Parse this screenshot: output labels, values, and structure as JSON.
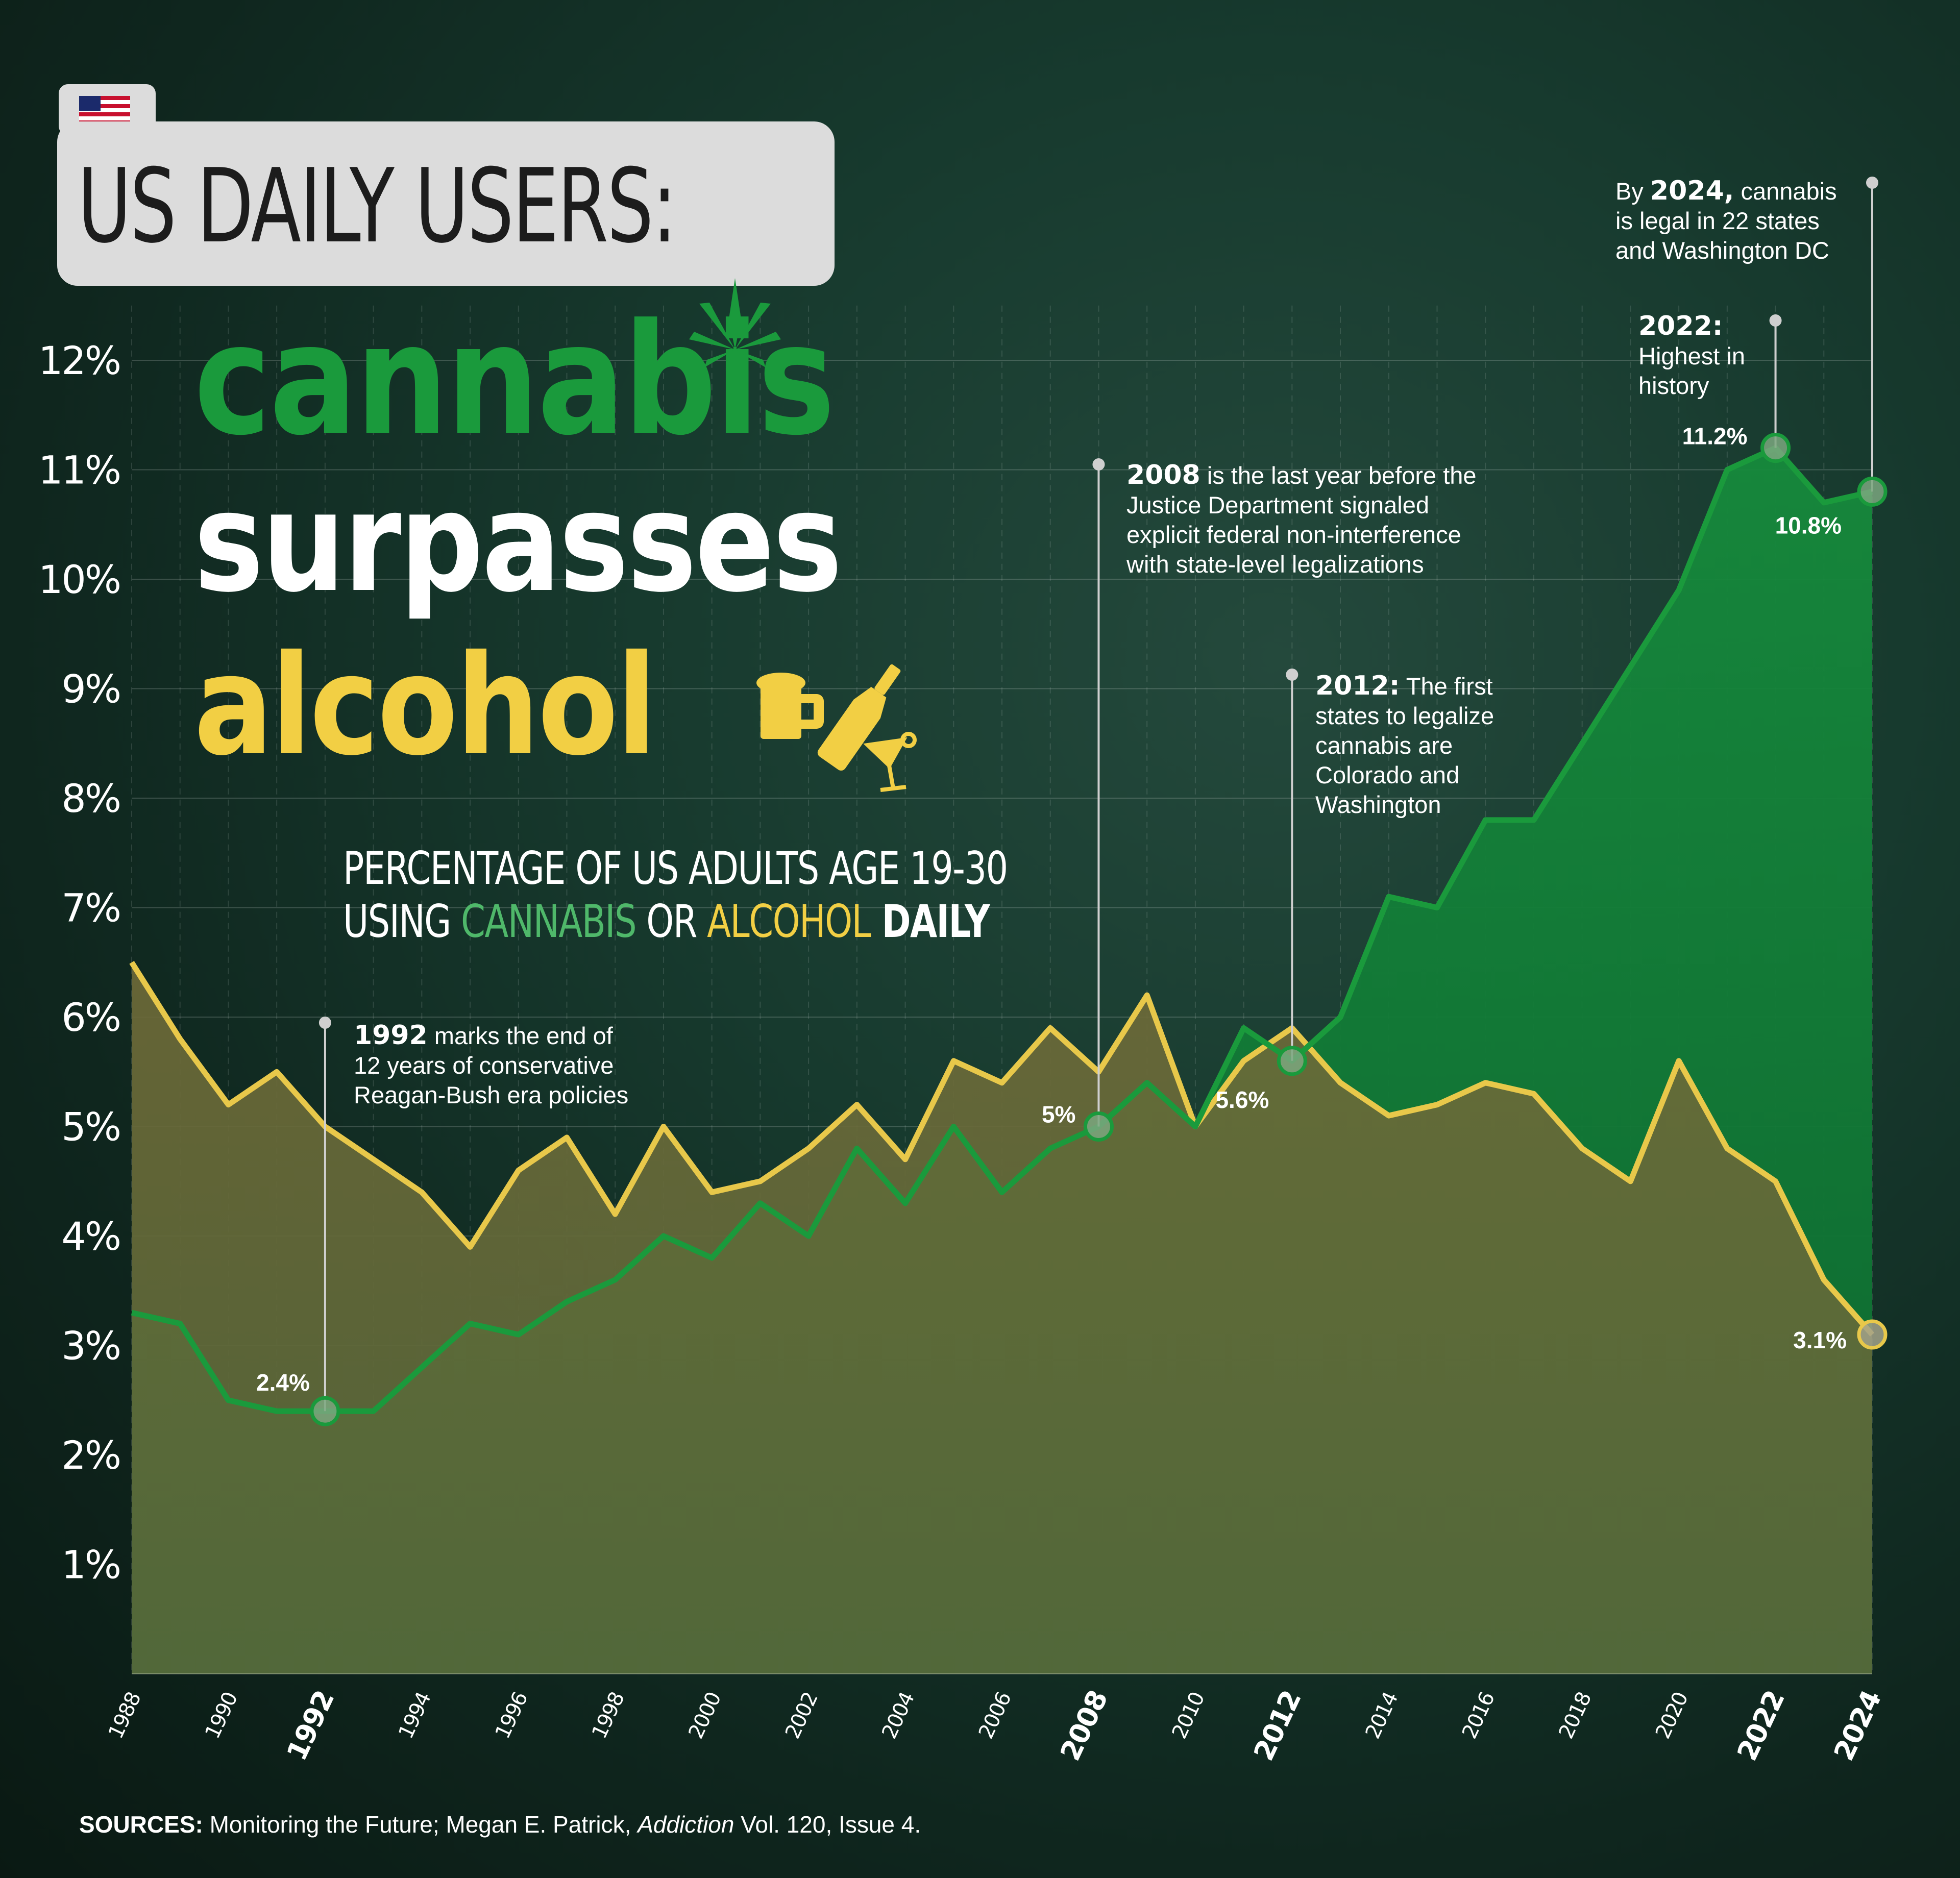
{
  "title": {
    "line1": "US DAILY USERS:",
    "line2": "cannabis",
    "line3": "surpasses",
    "line4": "alcohol"
  },
  "subtitle": {
    "part1": "PERCENTAGE OF US ADULTS AGE 19-30",
    "part2": "USING ",
    "cannabis": "CANNABIS",
    "or": " OR ",
    "alcohol": "ALCOHOL",
    "daily": " DAILY"
  },
  "annotations": {
    "a1992": {
      "year": "1992",
      "text": " marks the end of",
      "line2": "12 years of conservative",
      "line3": "Reagan-Bush era policies"
    },
    "a2008": {
      "year": "2008",
      "text": " is the last year before the",
      "line2": "Justice Department signaled",
      "line3": "explicit federal non-interference",
      "line4": "with state-level legalizations"
    },
    "a2012": {
      "year": "2012:",
      "text": " The first",
      "line2": "states to legalize",
      "line3": "cannabis are",
      "line4": "Colorado and",
      "line5": "Washington"
    },
    "a2022": {
      "year": "2022:",
      "line2": "Highest in",
      "line3": "history"
    },
    "a2024": {
      "prefix": "By ",
      "year": "2024,",
      "text": " cannabis",
      "line2": "is legal in 22 states",
      "line3": "and Washington DC"
    }
  },
  "sources": {
    "label": "SOURCES:",
    "text1": " Monitoring the Future; Megan E. Patrick, ",
    "journal": "Addiction",
    "text2": " Vol. 120, Issue 4."
  },
  "colors": {
    "cannabis_line": "#1a9a3c",
    "alcohol_line": "#e8c84a",
    "title_green": "#1a9a3c",
    "title_yellow": "#f2cf44",
    "title_box": "#dcdcdc",
    "background": "#173a2e"
  },
  "icons": [
    "us-flag-icon",
    "cannabis-leaf-icon",
    "beer-mug-icon",
    "wine-bottle-icon",
    "cocktail-glass-icon"
  ],
  "chart_data": {
    "type": "line",
    "x": [
      1988,
      1989,
      1990,
      1991,
      1992,
      1993,
      1994,
      1995,
      1996,
      1997,
      1998,
      1999,
      2000,
      2001,
      2002,
      2003,
      2004,
      2005,
      2006,
      2007,
      2008,
      2009,
      2010,
      2011,
      2012,
      2013,
      2014,
      2015,
      2016,
      2017,
      2018,
      2019,
      2020,
      2021,
      2022,
      2023,
      2024
    ],
    "xticks": [
      "1988",
      "1990",
      "1992",
      "1994",
      "1996",
      "1998",
      "2000",
      "2002",
      "2004",
      "2006",
      "2008",
      "2010",
      "2012",
      "2014",
      "2016",
      "2018",
      "2020",
      "2022",
      "2024"
    ],
    "xticks_highlighted": [
      "1992",
      "2008",
      "2012",
      "2022",
      "2024"
    ],
    "yticks": [
      "1%",
      "2%",
      "3%",
      "4%",
      "5%",
      "6%",
      "7%",
      "8%",
      "9%",
      "10%",
      "11%",
      "12%"
    ],
    "ylim": [
      0,
      12.5
    ],
    "grid": true,
    "series": [
      {
        "name": "CANNABIS",
        "color": "#1a9a3c",
        "values": [
          3.3,
          3.2,
          2.5,
          2.4,
          2.4,
          2.4,
          2.8,
          3.2,
          3.1,
          3.4,
          3.6,
          4.0,
          3.8,
          4.3,
          4.0,
          4.8,
          4.3,
          5.0,
          4.4,
          4.8,
          5.0,
          5.4,
          5.0,
          5.9,
          5.6,
          6.0,
          7.1,
          7.0,
          7.8,
          7.8,
          8.5,
          9.2,
          9.9,
          11.0,
          11.2,
          10.7,
          10.8
        ]
      },
      {
        "name": "ALCOHOL",
        "color": "#e8c84a",
        "values": [
          6.5,
          5.8,
          5.2,
          5.5,
          5.0,
          4.7,
          4.4,
          3.9,
          4.6,
          4.9,
          4.2,
          5.0,
          4.4,
          4.5,
          4.8,
          5.2,
          4.7,
          5.6,
          5.4,
          5.9,
          5.5,
          6.2,
          5.0,
          5.6,
          5.9,
          5.4,
          5.1,
          5.2,
          5.4,
          5.3,
          4.8,
          4.5,
          5.6,
          4.8,
          4.5,
          3.6,
          3.1
        ]
      }
    ],
    "point_labels": [
      {
        "series": "CANNABIS",
        "year": 1992,
        "value": 2.4,
        "text": "2.4%"
      },
      {
        "series": "CANNABIS",
        "year": 2008,
        "value": 5.0,
        "text": "5%"
      },
      {
        "series": "CANNABIS",
        "year": 2012,
        "value": 5.6,
        "text": "5.6%"
      },
      {
        "series": "CANNABIS",
        "year": 2022,
        "value": 11.2,
        "text": "11.2%"
      },
      {
        "series": "CANNABIS",
        "year": 2024,
        "value": 10.8,
        "text": "10.8%"
      },
      {
        "series": "ALCOHOL",
        "year": 2024,
        "value": 3.1,
        "text": "3.1%"
      }
    ]
  }
}
